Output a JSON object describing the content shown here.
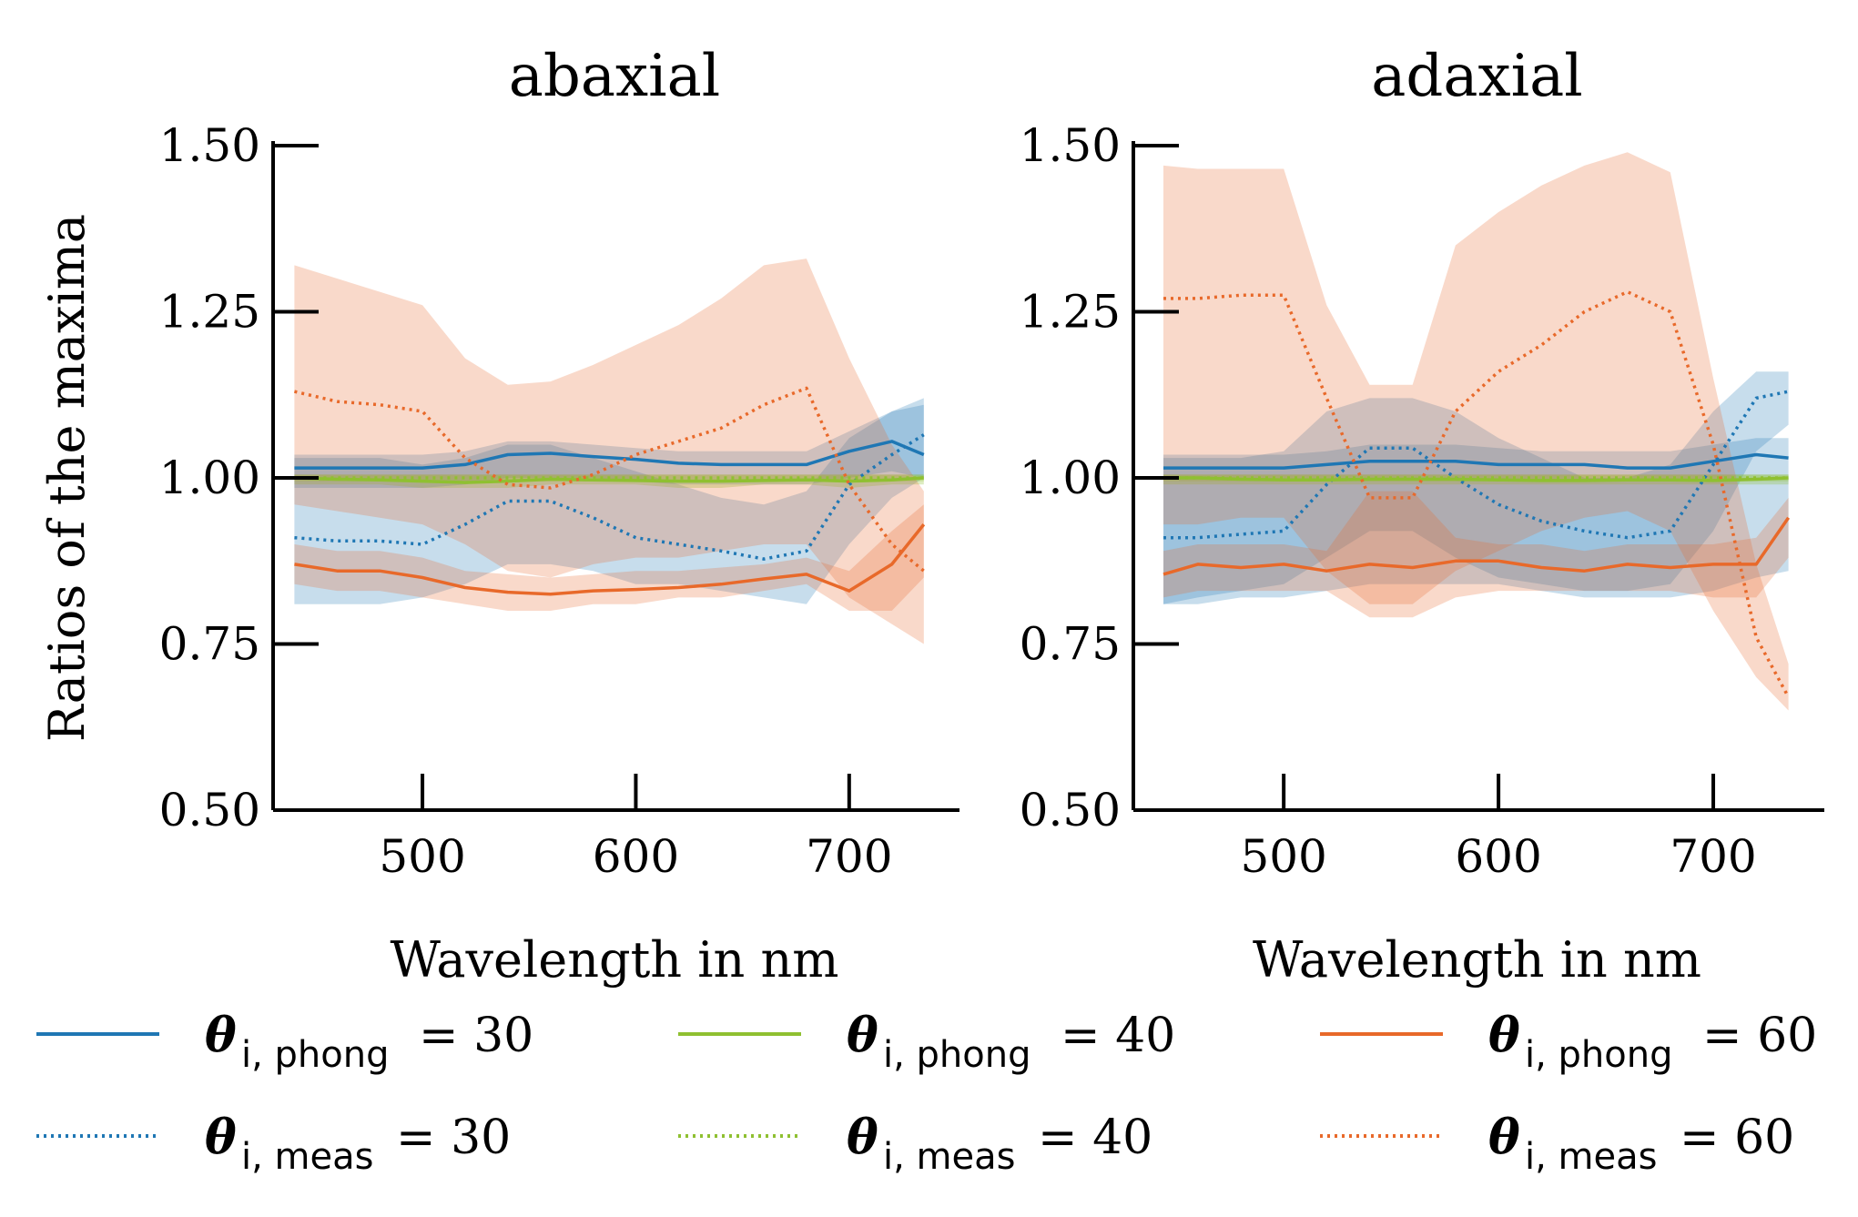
{
  "chart_data": [
    {
      "type": "line",
      "title": "abaxial",
      "xlabel": "Wavelength in nm",
      "ylabel": "Ratios of the maxima",
      "xlim": [
        430,
        750
      ],
      "ylim": [
        0.5,
        1.5
      ],
      "xticks": [
        "500",
        "600",
        "700"
      ],
      "yticks": [
        "0.50",
        "0.75",
        "1.00",
        "1.25",
        "1.50"
      ],
      "x": [
        440,
        460,
        480,
        500,
        520,
        540,
        560,
        580,
        600,
        620,
        640,
        660,
        680,
        700,
        720,
        735
      ],
      "series": [
        {
          "name": "phong30",
          "angle": "30",
          "kind": "phong",
          "color": "#1f77b4",
          "values": [
            1.015,
            1.015,
            1.015,
            1.015,
            1.02,
            1.035,
            1.037,
            1.032,
            1.028,
            1.022,
            1.02,
            1.02,
            1.02,
            1.04,
            1.055,
            1.035
          ],
          "lower": [
            0.985,
            0.985,
            0.985,
            0.985,
            0.99,
            1.0,
            1.0,
            1.0,
            0.995,
            0.99,
            0.99,
            0.99,
            0.99,
            1.0,
            1.01,
            1.0
          ],
          "upper": [
            1.035,
            1.035,
            1.035,
            1.035,
            1.04,
            1.055,
            1.055,
            1.05,
            1.045,
            1.04,
            1.04,
            1.04,
            1.04,
            1.07,
            1.1,
            1.11
          ]
        },
        {
          "name": "meas30",
          "angle": "30",
          "kind": "meas",
          "color": "#1f77b4",
          "values": [
            0.91,
            0.905,
            0.905,
            0.9,
            0.93,
            0.965,
            0.965,
            0.94,
            0.91,
            0.9,
            0.89,
            0.878,
            0.89,
            0.99,
            1.035,
            1.065
          ],
          "lower": [
            0.81,
            0.81,
            0.81,
            0.82,
            0.84,
            0.87,
            0.87,
            0.86,
            0.84,
            0.84,
            0.83,
            0.82,
            0.81,
            0.9,
            0.97,
            1.0
          ],
          "upper": [
            1.03,
            1.03,
            1.03,
            1.02,
            1.03,
            1.05,
            1.05,
            1.03,
            1.01,
            0.99,
            0.97,
            0.96,
            0.98,
            1.06,
            1.1,
            1.12
          ]
        },
        {
          "name": "phong40",
          "angle": "40",
          "kind": "phong",
          "color": "#8fc031",
          "values": [
            1.0,
            0.998,
            0.997,
            0.995,
            0.993,
            0.995,
            0.998,
            0.997,
            0.996,
            0.995,
            0.995,
            0.996,
            0.997,
            0.995,
            0.997,
            1.0
          ],
          "lower": [
            0.99,
            0.99,
            0.99,
            0.985,
            0.985,
            0.985,
            0.99,
            0.99,
            0.99,
            0.985,
            0.985,
            0.99,
            0.99,
            0.985,
            0.99,
            0.99
          ],
          "upper": [
            1.005,
            1.005,
            1.005,
            1.005,
            1.005,
            1.005,
            1.005,
            1.005,
            1.005,
            1.005,
            1.005,
            1.005,
            1.005,
            1.005,
            1.005,
            1.005
          ]
        },
        {
          "name": "meas40",
          "angle": "40",
          "kind": "meas",
          "color": "#8fc031",
          "values": [
            1.0,
            1.0,
            1.0,
            1.0,
            1.0,
            1.0,
            1.0,
            1.0,
            1.0,
            1.0,
            1.0,
            1.0,
            1.0,
            1.0,
            1.0,
            1.0
          ],
          "lower": [
            0.995,
            0.995,
            0.995,
            0.995,
            0.995,
            0.995,
            0.995,
            0.995,
            0.995,
            0.995,
            0.995,
            0.995,
            0.995,
            0.995,
            0.995,
            0.995
          ],
          "upper": [
            1.005,
            1.005,
            1.005,
            1.005,
            1.005,
            1.005,
            1.005,
            1.005,
            1.005,
            1.005,
            1.005,
            1.005,
            1.005,
            1.005,
            1.005,
            1.005
          ]
        },
        {
          "name": "phong60",
          "angle": "60",
          "kind": "phong",
          "color": "#e8692a",
          "values": [
            0.87,
            0.86,
            0.86,
            0.85,
            0.835,
            0.828,
            0.825,
            0.83,
            0.832,
            0.835,
            0.84,
            0.848,
            0.855,
            0.83,
            0.87,
            0.93
          ],
          "lower": [
            0.84,
            0.83,
            0.83,
            0.82,
            0.81,
            0.8,
            0.8,
            0.81,
            0.81,
            0.82,
            0.82,
            0.83,
            0.84,
            0.8,
            0.8,
            0.85
          ],
          "upper": [
            0.9,
            0.89,
            0.89,
            0.88,
            0.86,
            0.855,
            0.85,
            0.855,
            0.86,
            0.86,
            0.865,
            0.87,
            0.88,
            0.86,
            0.92,
            0.96
          ]
        },
        {
          "name": "meas60",
          "angle": "60",
          "kind": "meas",
          "color": "#e8692a",
          "values": [
            1.13,
            1.115,
            1.11,
            1.1,
            1.03,
            0.99,
            0.985,
            1.005,
            1.035,
            1.055,
            1.075,
            1.11,
            1.135,
            0.99,
            0.9,
            0.86
          ],
          "lower": [
            0.96,
            0.95,
            0.94,
            0.93,
            0.9,
            0.86,
            0.85,
            0.87,
            0.88,
            0.88,
            0.89,
            0.9,
            0.9,
            0.82,
            0.78,
            0.75
          ],
          "upper": [
            1.32,
            1.3,
            1.28,
            1.26,
            1.18,
            1.14,
            1.145,
            1.17,
            1.2,
            1.23,
            1.27,
            1.32,
            1.33,
            1.18,
            1.05,
            0.98
          ]
        }
      ]
    },
    {
      "type": "line",
      "title": "adaxial",
      "xlabel": "Wavelength in nm",
      "ylabel": "",
      "xlim": [
        430,
        750
      ],
      "ylim": [
        0.5,
        1.5
      ],
      "xticks": [
        "500",
        "600",
        "700"
      ],
      "yticks": [
        "0.50",
        "0.75",
        "1.00",
        "1.25",
        "1.50"
      ],
      "x": [
        444,
        460,
        480,
        500,
        520,
        540,
        560,
        580,
        600,
        620,
        640,
        660,
        680,
        700,
        720,
        735
      ],
      "series": [
        {
          "name": "phong30",
          "angle": "30",
          "kind": "phong",
          "color": "#1f77b4",
          "values": [
            1.015,
            1.015,
            1.015,
            1.015,
            1.02,
            1.025,
            1.025,
            1.025,
            1.02,
            1.02,
            1.02,
            1.015,
            1.015,
            1.025,
            1.035,
            1.03
          ],
          "lower": [
            0.81,
            0.81,
            0.82,
            0.82,
            0.83,
            0.84,
            0.84,
            0.84,
            0.84,
            0.83,
            0.82,
            0.82,
            0.82,
            0.83,
            0.85,
            0.86
          ],
          "upper": [
            1.035,
            1.035,
            1.035,
            1.035,
            1.04,
            1.05,
            1.05,
            1.05,
            1.045,
            1.04,
            1.04,
            1.04,
            1.04,
            1.05,
            1.06,
            1.06
          ]
        },
        {
          "name": "meas30",
          "angle": "30",
          "kind": "meas",
          "color": "#1f77b4",
          "values": [
            0.91,
            0.91,
            0.915,
            0.92,
            0.99,
            1.045,
            1.045,
            1.0,
            0.96,
            0.935,
            0.92,
            0.91,
            0.92,
            1.02,
            1.12,
            1.13
          ],
          "lower": [
            0.81,
            0.82,
            0.83,
            0.84,
            0.88,
            0.92,
            0.92,
            0.88,
            0.85,
            0.84,
            0.83,
            0.83,
            0.84,
            0.92,
            1.04,
            1.08
          ],
          "upper": [
            1.03,
            1.03,
            1.03,
            1.04,
            1.1,
            1.12,
            1.12,
            1.1,
            1.06,
            1.03,
            1.0,
            1.0,
            1.02,
            1.1,
            1.16,
            1.16
          ]
        },
        {
          "name": "phong40",
          "angle": "40",
          "kind": "phong",
          "color": "#8fc031",
          "values": [
            1.0,
            1.0,
            0.998,
            0.997,
            0.997,
            0.998,
            0.998,
            0.998,
            0.997,
            0.996,
            0.996,
            0.997,
            0.997,
            0.996,
            0.998,
            1.0
          ],
          "lower": [
            0.99,
            0.99,
            0.99,
            0.99,
            0.99,
            0.99,
            0.99,
            0.99,
            0.99,
            0.99,
            0.99,
            0.99,
            0.99,
            0.99,
            0.99,
            0.99
          ],
          "upper": [
            1.005,
            1.005,
            1.005,
            1.005,
            1.005,
            1.005,
            1.005,
            1.005,
            1.005,
            1.005,
            1.005,
            1.005,
            1.005,
            1.005,
            1.005,
            1.005
          ]
        },
        {
          "name": "meas40",
          "angle": "40",
          "kind": "meas",
          "color": "#8fc031",
          "values": [
            1.0,
            1.0,
            1.0,
            1.0,
            1.0,
            1.0,
            1.0,
            1.0,
            1.0,
            1.0,
            1.0,
            1.0,
            1.0,
            1.0,
            1.0,
            1.0
          ],
          "lower": [
            0.995,
            0.995,
            0.995,
            0.995,
            0.995,
            0.995,
            0.995,
            0.995,
            0.995,
            0.995,
            0.995,
            0.995,
            0.995,
            0.995,
            0.995,
            0.995
          ],
          "upper": [
            1.005,
            1.005,
            1.005,
            1.005,
            1.005,
            1.005,
            1.005,
            1.005,
            1.005,
            1.005,
            1.005,
            1.005,
            1.005,
            1.005,
            1.005,
            1.005
          ]
        },
        {
          "name": "phong60",
          "angle": "60",
          "kind": "phong",
          "color": "#e8692a",
          "values": [
            0.855,
            0.87,
            0.865,
            0.87,
            0.86,
            0.87,
            0.865,
            0.875,
            0.875,
            0.865,
            0.86,
            0.87,
            0.865,
            0.87,
            0.87,
            0.94
          ],
          "lower": [
            0.82,
            0.83,
            0.83,
            0.83,
            0.83,
            0.79,
            0.79,
            0.82,
            0.83,
            0.83,
            0.83,
            0.83,
            0.83,
            0.82,
            0.82,
            0.88
          ],
          "upper": [
            0.89,
            0.9,
            0.9,
            0.9,
            0.89,
            0.98,
            0.98,
            0.91,
            0.9,
            0.9,
            0.89,
            0.9,
            0.9,
            0.9,
            0.91,
            0.97
          ]
        },
        {
          "name": "meas60",
          "angle": "60",
          "kind": "meas",
          "color": "#e8692a",
          "values": [
            1.27,
            1.27,
            1.275,
            1.275,
            1.12,
            0.97,
            0.97,
            1.1,
            1.16,
            1.2,
            1.25,
            1.28,
            1.25,
            1.05,
            0.76,
            0.67
          ],
          "lower": [
            0.93,
            0.93,
            0.94,
            0.94,
            0.86,
            0.81,
            0.81,
            0.86,
            0.89,
            0.92,
            0.94,
            0.95,
            0.92,
            0.8,
            0.7,
            0.65
          ],
          "upper": [
            1.47,
            1.465,
            1.465,
            1.465,
            1.26,
            1.14,
            1.14,
            1.35,
            1.4,
            1.44,
            1.47,
            1.49,
            1.46,
            1.15,
            0.87,
            0.72
          ]
        }
      ]
    }
  ],
  "legend": [
    {
      "sub": "phong",
      "eq": "= 30",
      "color": "#1f77b4",
      "style": "solid"
    },
    {
      "sub": "phong",
      "eq": "= 40",
      "color": "#8fc031",
      "style": "solid"
    },
    {
      "sub": "phong",
      "eq": "= 60",
      "color": "#e8692a",
      "style": "solid"
    },
    {
      "sub": "meas",
      "eq": "= 30",
      "color": "#1f77b4",
      "style": "dotted"
    },
    {
      "sub": "meas",
      "eq": "= 40",
      "color": "#8fc031",
      "style": "dotted"
    },
    {
      "sub": "meas",
      "eq": "= 60",
      "color": "#e8692a",
      "style": "dotted"
    }
  ],
  "legend_symbol": "θ",
  "legend_index": "i,"
}
